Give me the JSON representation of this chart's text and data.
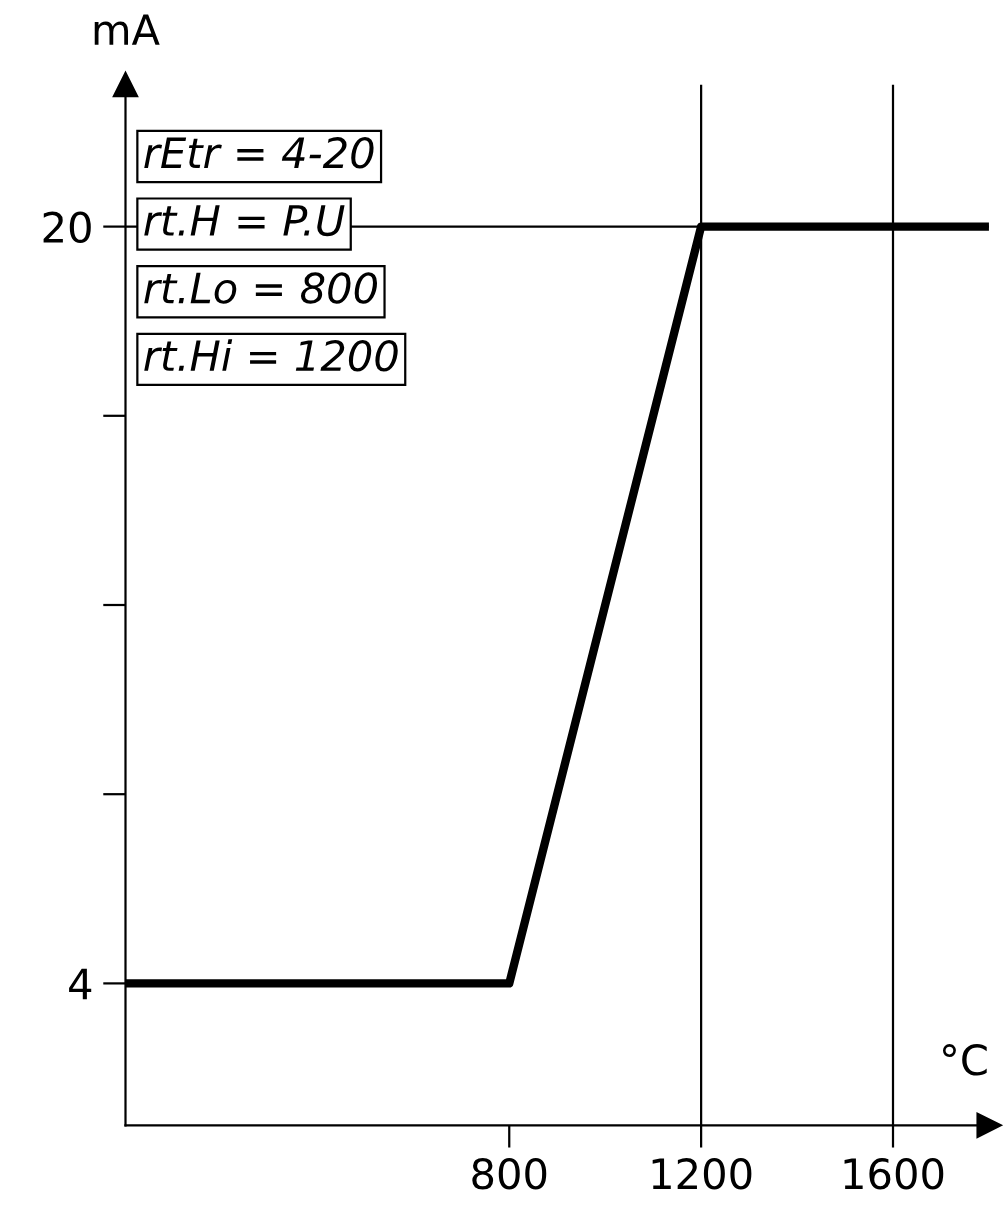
{
  "chart_data": {
    "type": "line",
    "xlabel": "°C",
    "ylabel": "mA",
    "x": [
      0,
      800,
      1200,
      1800
    ],
    "series": [
      {
        "color": "#000000",
        "values": [
          4,
          4,
          20,
          20
        ]
      }
    ],
    "xlim": [
      0,
      1800
    ],
    "ylim": [
      1,
      23
    ],
    "xticks": [
      800,
      1200,
      1600
    ],
    "yticks": [
      4,
      {
        "value": 8,
        "label": null
      },
      {
        "value": 12,
        "label": null
      },
      {
        "value": 16,
        "label": null
      },
      20
    ],
    "ref_lines": [
      {
        "axis": "x",
        "value": 1200,
        "color": "#000000"
      },
      {
        "axis": "x",
        "value": 1600,
        "color": "#000000"
      },
      {
        "axis": "y",
        "value": 20,
        "color": "#000000"
      }
    ],
    "annotations": [
      "rEtr = 4-20",
      "rt.H = P.U",
      "rt.Lo = 800",
      "rt.Hi = 1200"
    ],
    "grid": false,
    "legend": false,
    "line_style": "solid",
    "marker": "none"
  }
}
